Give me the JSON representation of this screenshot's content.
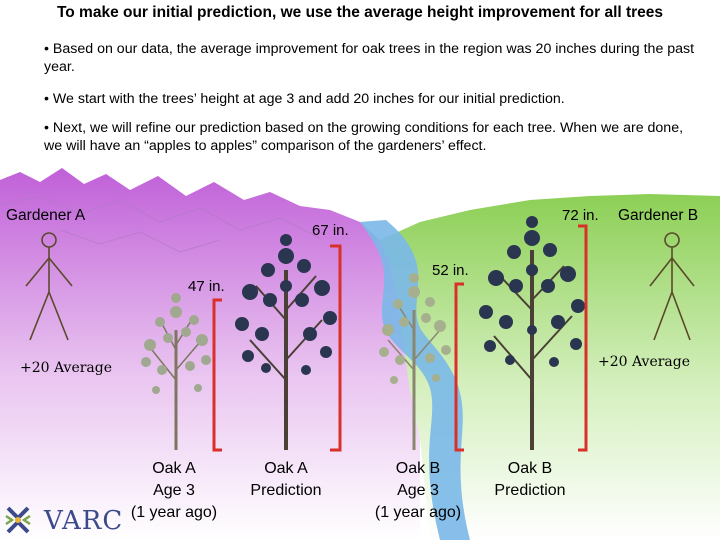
{
  "title": "To make our initial prediction, we use the average height improvement for all trees",
  "bullets": [
    "• Based on our data, the average improvement for oak trees in the region was 20 inches during the past year.",
    "• We start with the trees’ height at age 3 and add 20 inches for our initial prediction.",
    "• Next, we will refine our prediction based on the growing conditions for each tree. When we are done, we will have an “apples to apples” comparison of the gardeners’ effect."
  ],
  "gardener_a": "Gardener A",
  "gardener_b": "Gardener B",
  "average_left": "+20 Average",
  "average_right": "+20 Average",
  "heights": {
    "oak_a_age3": "47 in.",
    "oak_a_prediction": "67 in.",
    "oak_b_age3": "52 in.",
    "oak_b_prediction": "72 in."
  },
  "captions": {
    "oak_a_age3": [
      "Oak A",
      "Age 3",
      "(1 year ago)"
    ],
    "oak_a_prediction": [
      "Oak A",
      "Prediction"
    ],
    "oak_b_age3": [
      "Oak B",
      "Age 3",
      "(1 year ago)"
    ],
    "oak_b_prediction": [
      "Oak B",
      "Prediction"
    ]
  },
  "logo": "VARC",
  "colors": {
    "bracket": "#d9302a",
    "river": "#7ab8e8",
    "left_field": "#c56ad9",
    "right_field": "#9fd66a",
    "small_tree": "#a0a890",
    "big_tree": "#2a3550"
  }
}
